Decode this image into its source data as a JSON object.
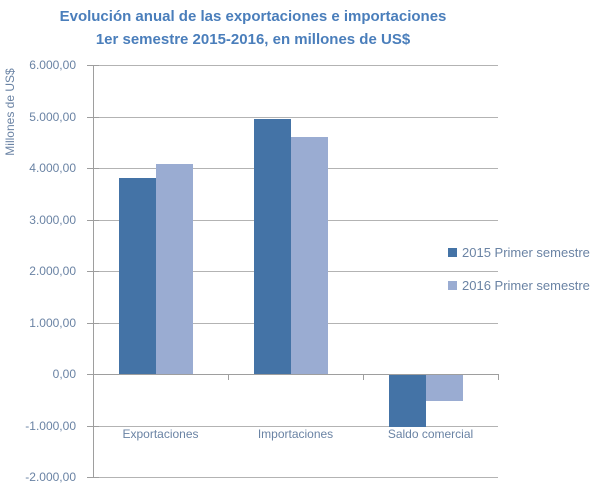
{
  "title": {
    "line1": "Evolución anual de las exportaciones e importaciones",
    "line2": "1er semestre 2015-2016, en millones de US$"
  },
  "chart_data": {
    "type": "bar",
    "title": "Evolución anual de las exportaciones e importaciones 1er semestre 2015-2016, en millones de US$",
    "categories": [
      "Exportaciones",
      "Importaciones",
      "Saldo comercial"
    ],
    "series": [
      {
        "name": "2015 Primer semestre",
        "values": [
          3800,
          4950,
          -1000
        ],
        "color": "#4473A6"
      },
      {
        "name": "2016 Primer semestre",
        "values": [
          4080,
          4610,
          -500
        ],
        "color": "#9AACD2"
      }
    ],
    "ylabel": "Millones de US$",
    "ylim": [
      -2000,
      6000
    ],
    "ytick_step": 1000,
    "ytick_labels": [
      "6.000,00",
      "5.000,00",
      "4.000,00",
      "3.000,00",
      "2.000,00",
      "1.000,00",
      "0,00",
      "-1.000,00",
      "-2.000,00"
    ],
    "grid": true,
    "legend_position": "right-middle"
  },
  "colors": {
    "title": "#4A7EBB",
    "labels": "#6A83A4",
    "gridline": "#B3B3B3",
    "axis": "#9E9E9E",
    "series_2015": "#4473A6",
    "series_2016": "#9AACD2",
    "background": "#FFFFFF"
  }
}
